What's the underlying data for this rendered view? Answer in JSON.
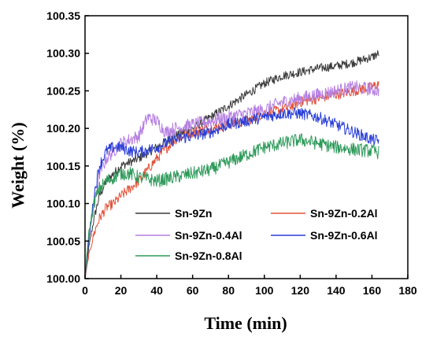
{
  "chart_data": {
    "type": "line",
    "xlabel": "Time (min)",
    "ylabel": "Weight (%)",
    "xlim": [
      0,
      180
    ],
    "ylim": [
      100.0,
      100.35
    ],
    "xticks": [
      0,
      20,
      40,
      60,
      80,
      100,
      120,
      140,
      160,
      180
    ],
    "yticks": [
      "100.00",
      "100.05",
      "100.10",
      "100.15",
      "100.20",
      "100.25",
      "100.30",
      "100.35"
    ],
    "grid": false,
    "legend_position": "bottom-center",
    "series": [
      {
        "name": "Sn-9Zn",
        "color": "#3a3a3a",
        "x": [
          0,
          2,
          5,
          8,
          12,
          16,
          20,
          25,
          30,
          40,
          50,
          60,
          70,
          80,
          90,
          100,
          110,
          120,
          130,
          140,
          150,
          160,
          164
        ],
        "y": [
          100.0,
          100.04,
          100.08,
          100.11,
          100.13,
          100.14,
          100.15,
          100.155,
          100.16,
          100.175,
          100.19,
          100.2,
          100.215,
          100.23,
          100.245,
          100.26,
          100.27,
          100.275,
          100.28,
          100.283,
          100.288,
          100.295,
          100.3
        ]
      },
      {
        "name": "Sn-9Zn-0.2Al",
        "color": "#e0533a",
        "x": [
          0,
          2,
          5,
          8,
          12,
          16,
          20,
          25,
          30,
          40,
          50,
          60,
          70,
          80,
          90,
          100,
          110,
          120,
          130,
          140,
          150,
          160,
          164
        ],
        "y": [
          100.0,
          100.03,
          100.06,
          100.08,
          100.095,
          100.1,
          100.11,
          100.12,
          100.13,
          100.16,
          100.185,
          100.195,
          100.2,
          100.205,
          100.21,
          100.22,
          100.225,
          100.235,
          100.24,
          100.245,
          100.25,
          100.255,
          100.26
        ]
      },
      {
        "name": "Sn-9Zn-0.4Al",
        "color": "#b57fe0",
        "x": [
          0,
          2,
          5,
          8,
          12,
          16,
          20,
          25,
          30,
          35,
          40,
          45,
          50,
          60,
          70,
          80,
          90,
          100,
          110,
          120,
          130,
          140,
          150,
          160,
          164
        ],
        "y": [
          100.0,
          100.05,
          100.1,
          100.14,
          100.16,
          100.17,
          100.18,
          100.185,
          100.19,
          100.215,
          100.21,
          100.195,
          100.2,
          100.205,
          100.21,
          100.215,
          100.22,
          100.225,
          100.235,
          100.24,
          100.245,
          100.25,
          100.255,
          100.252,
          100.25
        ]
      },
      {
        "name": "Sn-9Zn-0.6Al",
        "color": "#2a3fd8",
        "x": [
          0,
          2,
          5,
          8,
          12,
          16,
          20,
          25,
          30,
          40,
          50,
          60,
          70,
          80,
          90,
          100,
          110,
          120,
          130,
          140,
          150,
          160,
          164
        ],
        "y": [
          100.0,
          100.05,
          100.11,
          100.15,
          100.17,
          100.175,
          100.175,
          100.17,
          100.168,
          100.175,
          100.185,
          100.19,
          100.195,
          100.205,
          100.21,
          100.215,
          100.22,
          100.22,
          100.215,
          100.205,
          100.195,
          100.185,
          100.183
        ]
      },
      {
        "name": "Sn-9Zn-0.8Al",
        "color": "#2e9a5a",
        "x": [
          0,
          2,
          5,
          8,
          12,
          16,
          20,
          25,
          30,
          40,
          50,
          60,
          70,
          80,
          90,
          100,
          110,
          120,
          130,
          140,
          150,
          160,
          164
        ],
        "y": [
          100.0,
          100.06,
          100.1,
          100.12,
          100.13,
          100.135,
          100.14,
          100.14,
          100.135,
          100.13,
          100.135,
          100.14,
          100.145,
          100.155,
          100.165,
          100.175,
          100.18,
          100.185,
          100.18,
          100.175,
          100.172,
          100.17,
          100.168
        ]
      }
    ]
  }
}
